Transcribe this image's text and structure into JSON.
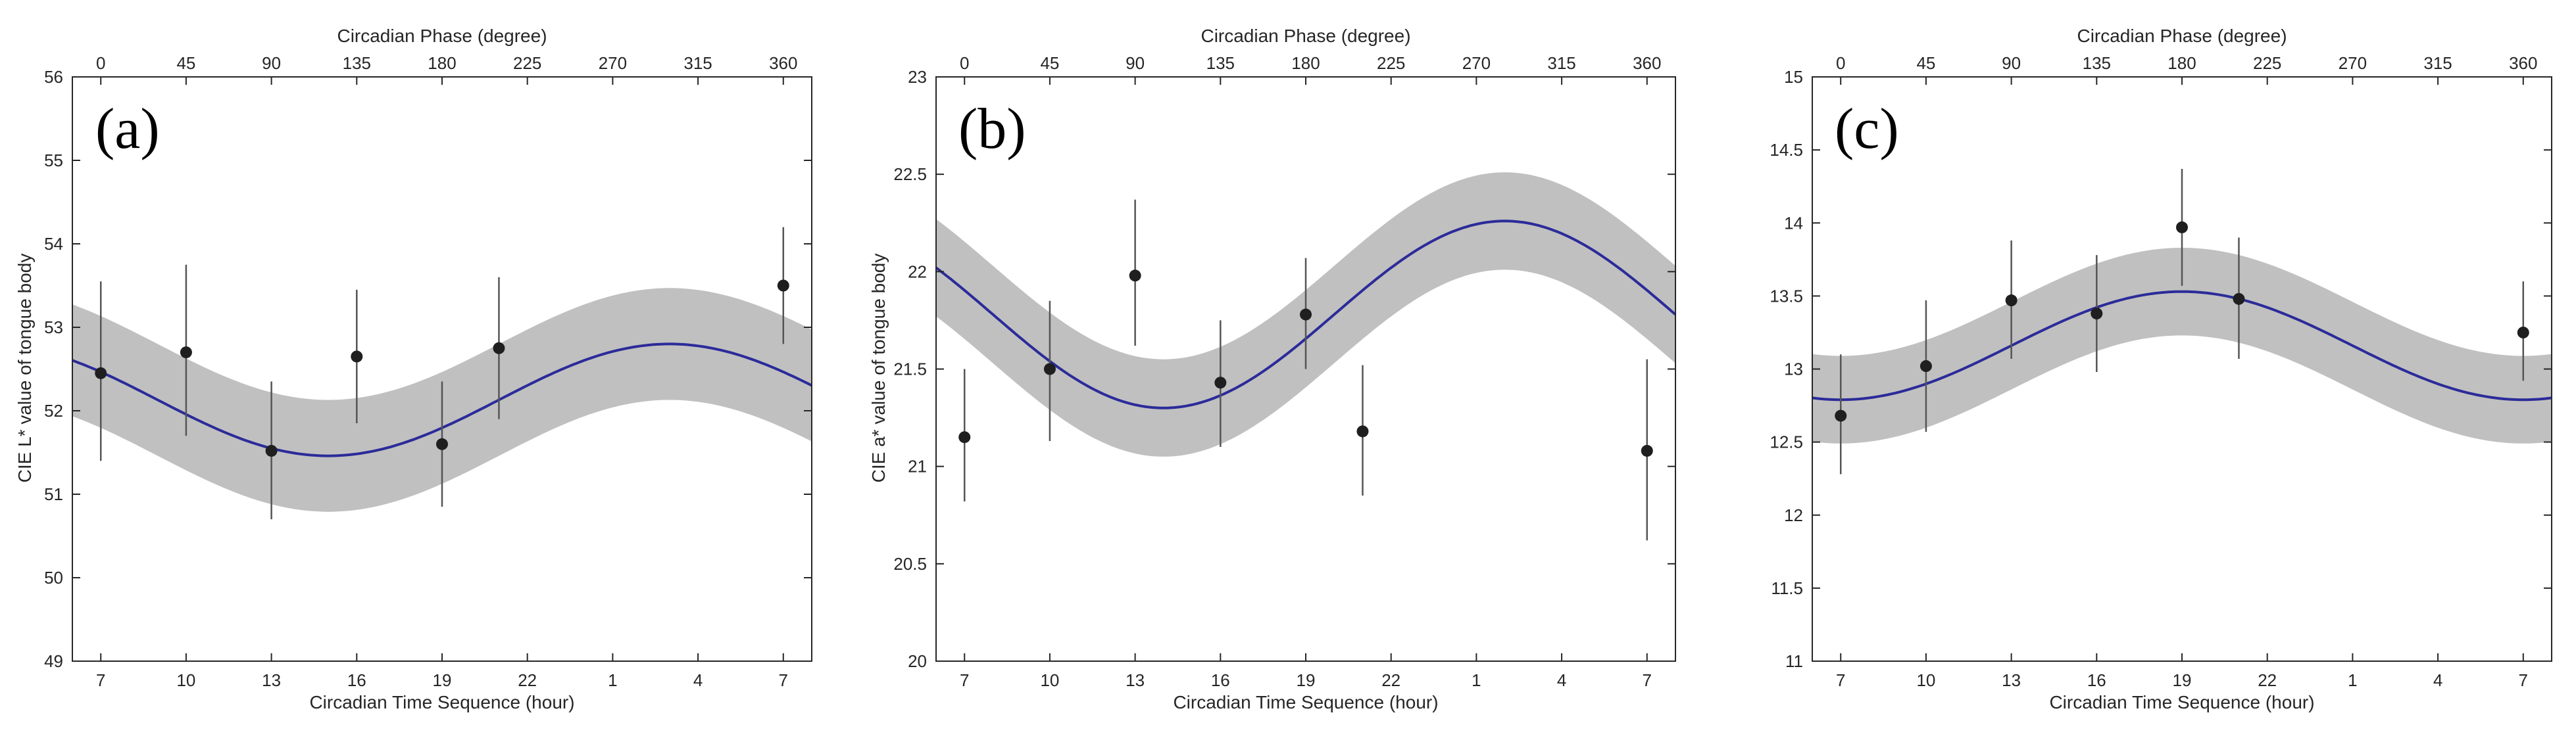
{
  "colors": {
    "fit_line": "#2b2b9a",
    "confidence_band": "#c0c0c0",
    "points": "#1f1f1f",
    "axes": "#262626"
  },
  "chart_data": [
    {
      "type": "line",
      "panel_label": "(a)",
      "xlabel": "Circadian Time Sequence (hour)",
      "ylabel": "CIE L* value of tongue body",
      "top_xlabel": "Circadian Phase (degree)",
      "x_ticks": [
        "7",
        "10",
        "13",
        "16",
        "19",
        "22",
        "1",
        "4",
        "7"
      ],
      "top_ticks": [
        "0",
        "45",
        "90",
        "135",
        "180",
        "225",
        "270",
        "315",
        "360"
      ],
      "ylim": [
        49,
        56
      ],
      "yticks": [
        49,
        50,
        51,
        52,
        53,
        54,
        55,
        56
      ],
      "y_tick_labels": [
        "49",
        "50",
        "51",
        "52",
        "53",
        "54",
        "55",
        "56"
      ],
      "xlim_phase": [
        -15,
        375
      ],
      "fit": {
        "mesor": 52.13,
        "amplitude": 0.67,
        "acrophase_deg": 300,
        "band_halfwidth": 0.67
      },
      "series": [
        {
          "kind": "points_with_error",
          "phase": [
            0,
            45,
            90,
            135,
            180,
            210,
            360
          ],
          "values": [
            52.45,
            52.7,
            51.52,
            52.65,
            51.6,
            52.75,
            53.5
          ],
          "err_low": [
            51.4,
            51.7,
            50.7,
            51.85,
            50.85,
            51.9,
            52.8
          ],
          "err_high": [
            53.55,
            53.75,
            52.35,
            53.45,
            52.35,
            53.6,
            54.2
          ]
        }
      ]
    },
    {
      "type": "line",
      "panel_label": "(b)",
      "xlabel": "Circadian Time Sequence (hour)",
      "ylabel": "CIE a* value of tongue body",
      "top_xlabel": "Circadian Phase (degree)",
      "x_ticks": [
        "7",
        "10",
        "13",
        "16",
        "19",
        "22",
        "1",
        "4",
        "7"
      ],
      "top_ticks": [
        "0",
        "45",
        "90",
        "135",
        "180",
        "225",
        "270",
        "315",
        "360"
      ],
      "ylim": [
        20,
        23
      ],
      "yticks": [
        20,
        20.5,
        21,
        21.5,
        22,
        22.5,
        23
      ],
      "y_tick_labels": [
        "20",
        "20.5",
        "21",
        "21.5",
        "22",
        "22.5",
        "23"
      ],
      "xlim_phase": [
        -15,
        375
      ],
      "fit": {
        "mesor": 21.78,
        "amplitude": 0.48,
        "acrophase_deg": 285,
        "band_halfwidth": 0.25
      },
      "series": [
        {
          "kind": "points_with_error",
          "phase": [
            0,
            45,
            90,
            135,
            180,
            210,
            360
          ],
          "values": [
            21.15,
            21.5,
            21.98,
            21.43,
            21.78,
            21.18,
            21.08
          ],
          "err_low": [
            20.82,
            21.13,
            21.62,
            21.1,
            21.5,
            20.85,
            20.62
          ],
          "err_high": [
            21.5,
            21.85,
            22.37,
            21.75,
            22.07,
            21.52,
            21.55
          ]
        }
      ]
    },
    {
      "type": "line",
      "panel_label": "(c)",
      "xlabel": "Circadian Time Sequence (hour)",
      "ylabel": "",
      "top_xlabel": "Circadian Phase (degree)",
      "x_ticks": [
        "7",
        "10",
        "13",
        "16",
        "19",
        "22",
        "1",
        "4",
        "7"
      ],
      "top_ticks": [
        "0",
        "45",
        "90",
        "135",
        "180",
        "225",
        "270",
        "315",
        "360"
      ],
      "ylim": [
        11,
        15
      ],
      "yticks": [
        11,
        11.5,
        12,
        12.5,
        13,
        13.5,
        14,
        14.5,
        15
      ],
      "y_tick_labels": [
        "11",
        "11.5",
        "12",
        "12.5",
        "13",
        "13.5",
        "14",
        "14.5",
        "15"
      ],
      "xlim_phase": [
        -15,
        375
      ],
      "fit": {
        "mesor": 13.16,
        "amplitude": 0.37,
        "acrophase_deg": 180,
        "band_halfwidth": 0.3
      },
      "series": [
        {
          "kind": "points_with_error",
          "phase": [
            0,
            45,
            90,
            135,
            180,
            210,
            360
          ],
          "values": [
            12.68,
            13.02,
            13.47,
            13.38,
            13.97,
            13.48,
            13.25
          ],
          "err_low": [
            12.28,
            12.57,
            13.07,
            12.98,
            13.57,
            13.07,
            12.92
          ],
          "err_high": [
            13.1,
            13.47,
            13.88,
            13.78,
            14.37,
            13.9,
            13.6
          ]
        }
      ]
    }
  ]
}
